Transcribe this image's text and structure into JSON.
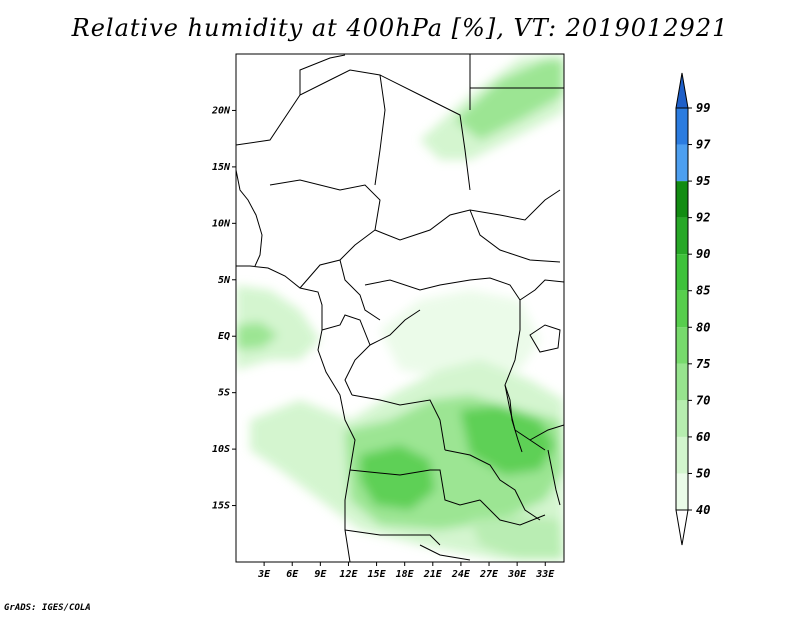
{
  "title": "Relative humidity at 400hPa [%], VT: 2019012921",
  "credit": "GrADS: IGES/COLA",
  "map": {
    "lon_range": [
      0,
      35
    ],
    "lat_range": [
      -20,
      25
    ],
    "lat_ticks": [
      {
        "value": 20,
        "label": "20N"
      },
      {
        "value": 15,
        "label": "15N"
      },
      {
        "value": 10,
        "label": "10N"
      },
      {
        "value": 5,
        "label": "5N"
      },
      {
        "value": 0,
        "label": "EQ"
      },
      {
        "value": -5,
        "label": "5S"
      },
      {
        "value": -10,
        "label": "10S"
      },
      {
        "value": -15,
        "label": "15S"
      }
    ],
    "lon_ticks": [
      {
        "value": 3,
        "label": "3E"
      },
      {
        "value": 6,
        "label": "6E"
      },
      {
        "value": 9,
        "label": "9E"
      },
      {
        "value": 12,
        "label": "12E"
      },
      {
        "value": 15,
        "label": "15E"
      },
      {
        "value": 18,
        "label": "18E"
      },
      {
        "value": 21,
        "label": "21E"
      },
      {
        "value": 24,
        "label": "24E"
      },
      {
        "value": 27,
        "label": "27E"
      },
      {
        "value": 30,
        "label": "30E"
      },
      {
        "value": 33,
        "label": "33E"
      }
    ]
  },
  "colorbar": {
    "levels": [
      "40",
      "50",
      "60",
      "70",
      "75",
      "80",
      "85",
      "90",
      "92",
      "95",
      "97",
      "99"
    ],
    "colors": [
      "#ffffff",
      "#eafbe8",
      "#d2f5cd",
      "#b6edaf",
      "#97e48e",
      "#77da6c",
      "#57ce4d",
      "#3ec23a",
      "#27a827",
      "#128c12",
      "#4d9ff0",
      "#2b7ce0",
      "#1e5fc8"
    ]
  }
}
